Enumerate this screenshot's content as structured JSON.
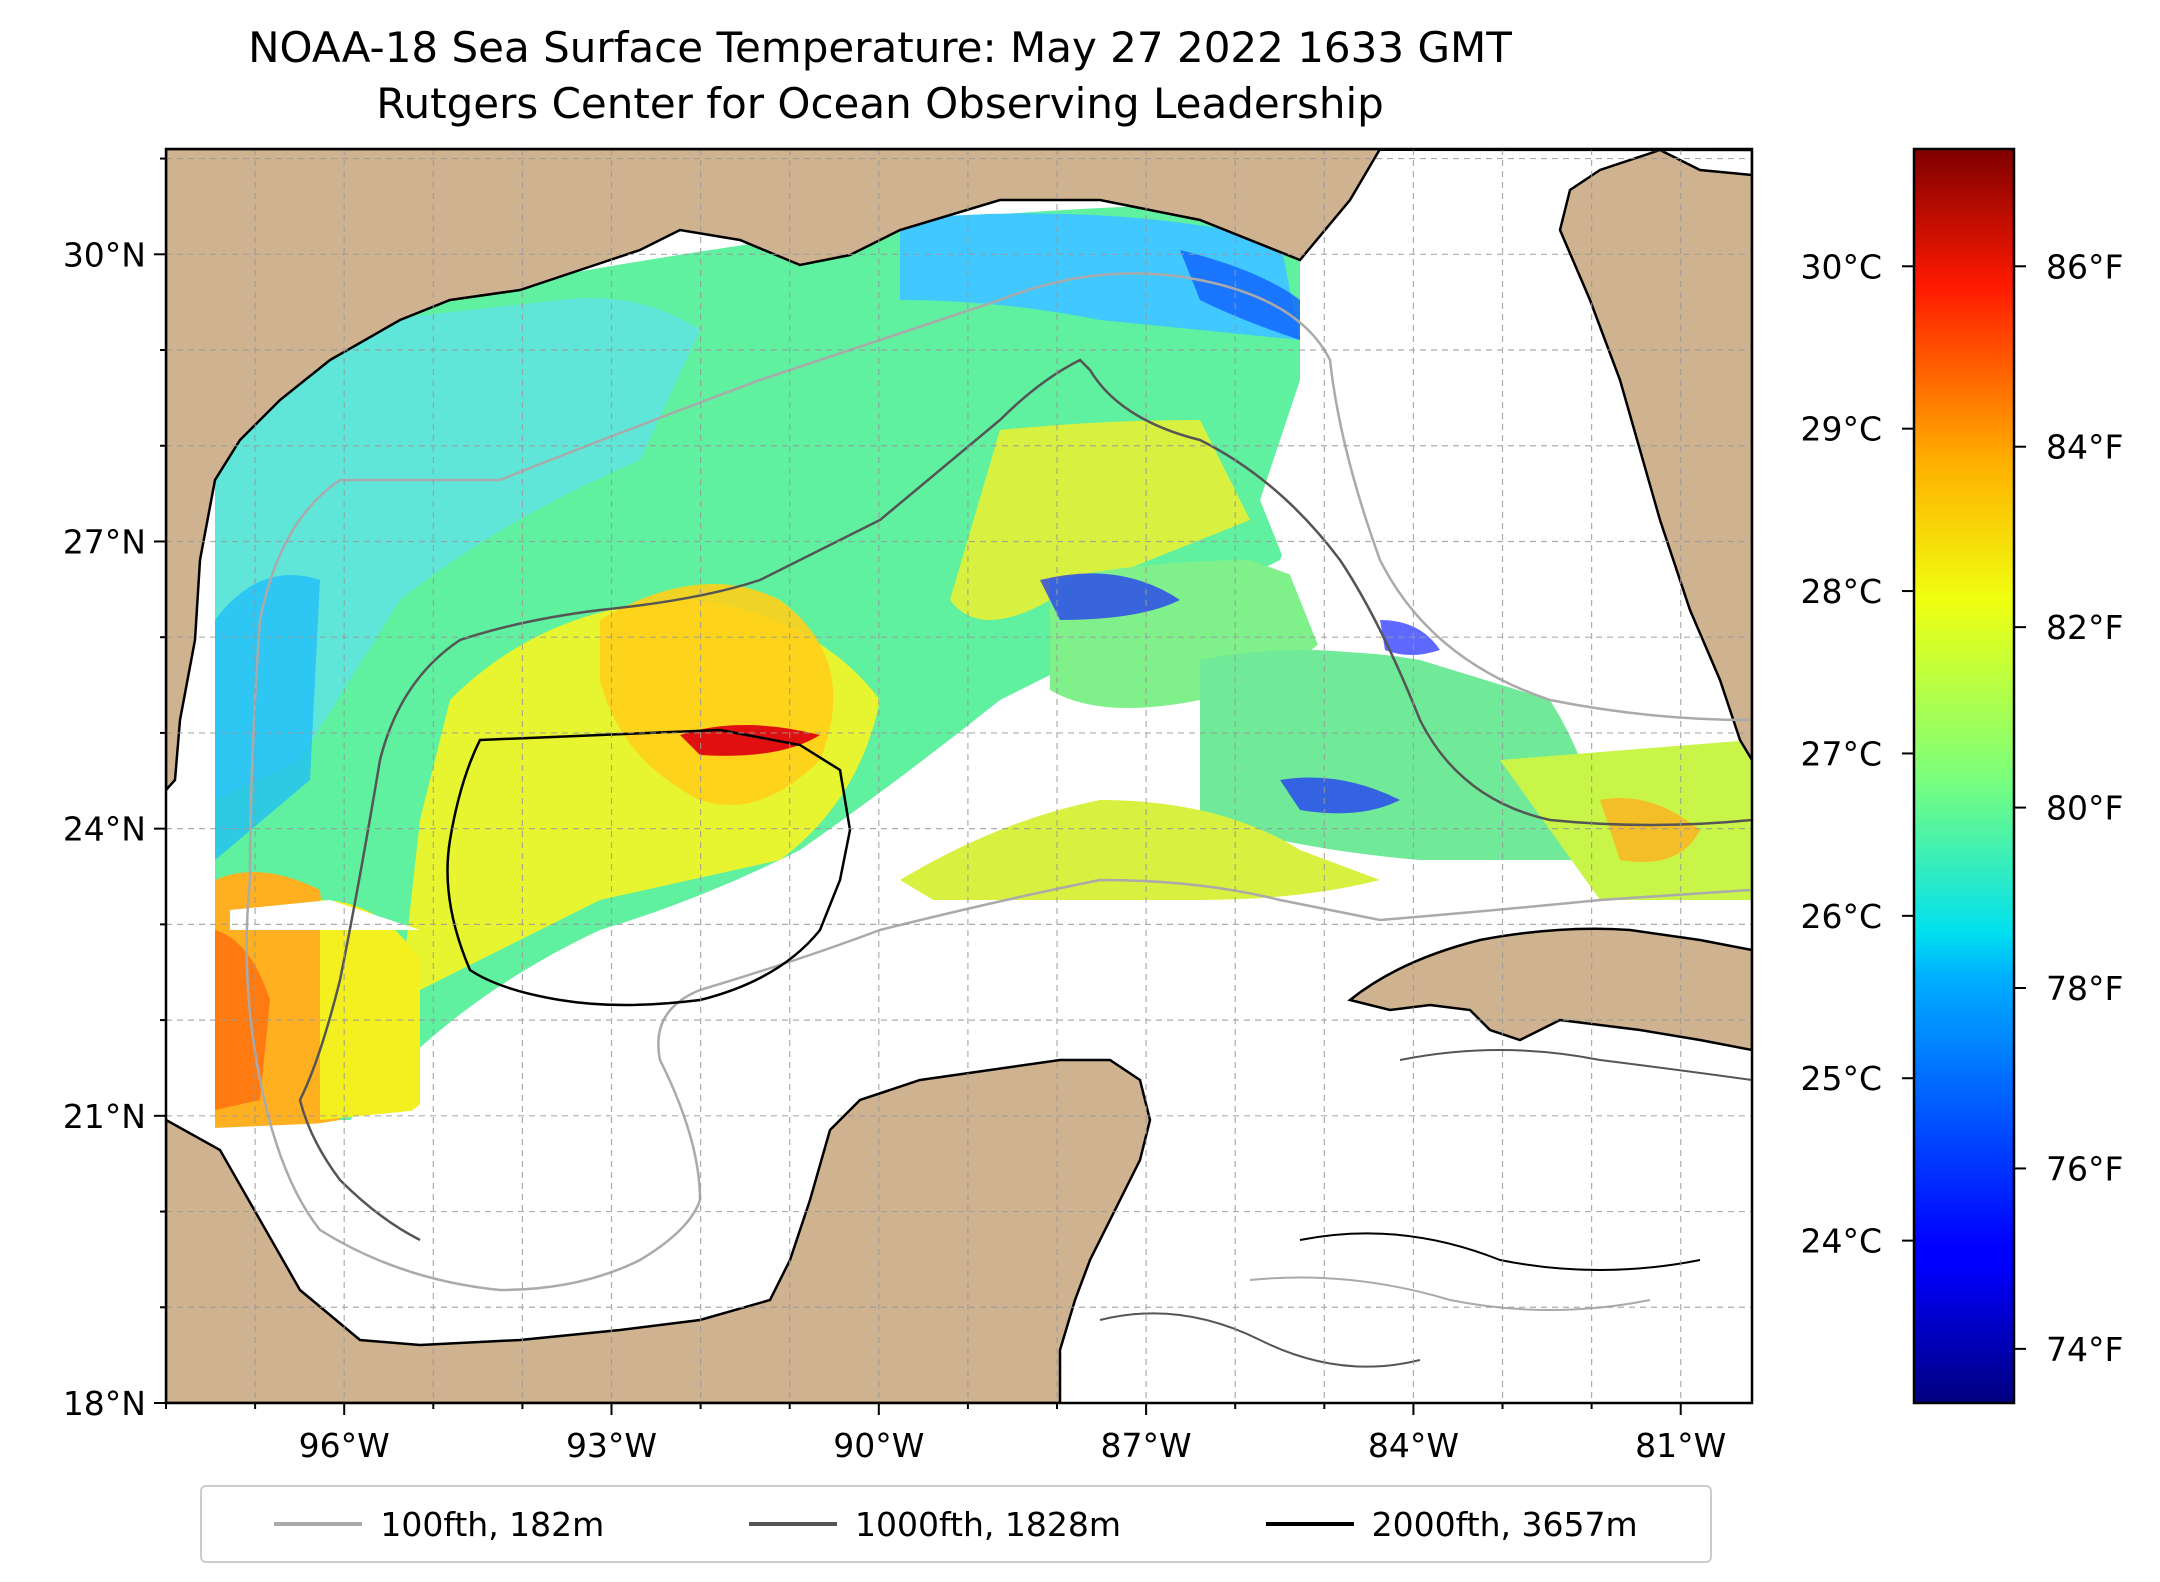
{
  "title": {
    "line1": "NOAA-18 Sea Surface Temperature: May 27 2022 1633 GMT",
    "line2": "Rutgers Center for Ocean Observing Leadership"
  },
  "map": {
    "lon_range": [
      -98.0,
      -80.2
    ],
    "lat_range": [
      18.0,
      31.1
    ],
    "lat_ticks": [
      {
        "value": 18,
        "label": "18°N"
      },
      {
        "value": 21,
        "label": "21°N"
      },
      {
        "value": 24,
        "label": "24°N"
      },
      {
        "value": 27,
        "label": "27°N"
      },
      {
        "value": 30,
        "label": "30°N"
      }
    ],
    "lon_ticks": [
      {
        "value": -96,
        "label": "96°W"
      },
      {
        "value": -93,
        "label": "93°W"
      },
      {
        "value": -90,
        "label": "90°W"
      },
      {
        "value": -87,
        "label": "87°W"
      },
      {
        "value": -84,
        "label": "84°W"
      },
      {
        "value": -81,
        "label": "81°W"
      }
    ],
    "grid": true,
    "colors": {
      "land": "#cfb28f",
      "no_data": "#ffffff",
      "contour_100": "#aaaaaa",
      "contour_1000": "#555555",
      "contour_2000": "#000000"
    }
  },
  "colorbar": {
    "colormap": "jet",
    "range_f": [
      73.4,
      87.3
    ],
    "celsius_ticks": [
      {
        "value": 24,
        "label": "24°C"
      },
      {
        "value": 25,
        "label": "25°C"
      },
      {
        "value": 26,
        "label": "26°C"
      },
      {
        "value": 27,
        "label": "27°C"
      },
      {
        "value": 28,
        "label": "28°C"
      },
      {
        "value": 29,
        "label": "29°C"
      },
      {
        "value": 30,
        "label": "30°C"
      }
    ],
    "fahrenheit_ticks": [
      {
        "value": 74,
        "label": "74°F"
      },
      {
        "value": 76,
        "label": "76°F"
      },
      {
        "value": 78,
        "label": "78°F"
      },
      {
        "value": 80,
        "label": "80°F"
      },
      {
        "value": 82,
        "label": "82°F"
      },
      {
        "value": 84,
        "label": "84°F"
      },
      {
        "value": 86,
        "label": "86°F"
      }
    ]
  },
  "legend": {
    "items": [
      {
        "label": "100fth, 182m",
        "color": "#aaaaaa"
      },
      {
        "label": "1000fth, 1828m",
        "color": "#555555"
      },
      {
        "label": "2000fth, 3657m",
        "color": "#000000"
      }
    ]
  }
}
